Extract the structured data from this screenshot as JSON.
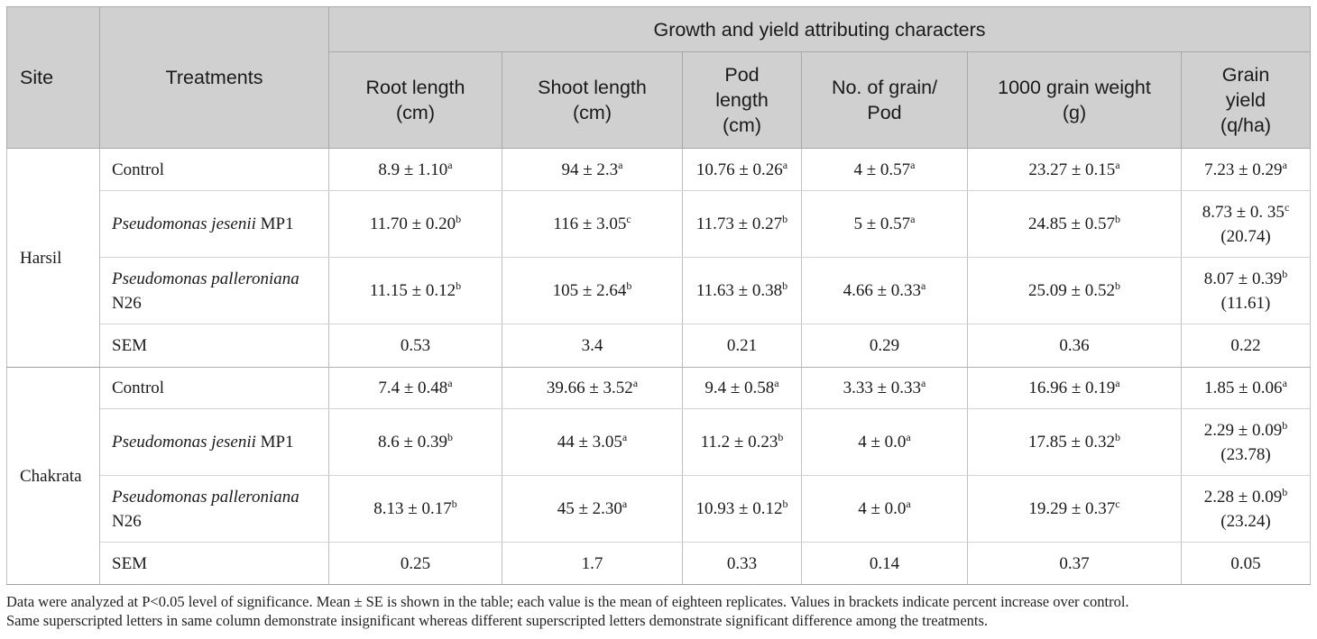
{
  "header": {
    "site": "Site",
    "treatments": "Treatments",
    "group": "Growth and yield attributing characters",
    "columns": [
      {
        "line1": "Root length",
        "line2": "(cm)",
        "line3": ""
      },
      {
        "line1": "Shoot length",
        "line2": "(cm)",
        "line3": ""
      },
      {
        "line1": "Pod",
        "line2": "length",
        "line3": "(cm)"
      },
      {
        "line1": "No. of grain/",
        "line2": "Pod",
        "line3": ""
      },
      {
        "line1": "1000 grain weight",
        "line2": "(g)",
        "line3": ""
      },
      {
        "line1": "Grain",
        "line2": "yield",
        "line3": "(q/ha)"
      }
    ]
  },
  "sites": [
    {
      "name": "Harsil",
      "rows": [
        {
          "treat_italic": "",
          "treat_plain": "Control",
          "treat_line2": "",
          "cells": [
            {
              "v": "8.9 ± 1.10",
              "s": "a",
              "extra": ""
            },
            {
              "v": "94 ± 2.3",
              "s": "a",
              "extra": ""
            },
            {
              "v": "10.76 ± 0.26",
              "s": "a",
              "extra": ""
            },
            {
              "v": "4 ± 0.57",
              "s": "a",
              "extra": ""
            },
            {
              "v": "23.27 ± 0.15",
              "s": "a",
              "extra": ""
            },
            {
              "v": "7.23 ± 0.29",
              "s": "a",
              "extra": ""
            }
          ]
        },
        {
          "treat_italic": "Pseudomonas jesenii",
          "treat_plain": " MP1",
          "treat_line2": "",
          "cells": [
            {
              "v": "11.70 ± 0.20",
              "s": "b",
              "extra": ""
            },
            {
              "v": "116 ± 3.05",
              "s": "c",
              "extra": ""
            },
            {
              "v": "11.73 ± 0.27",
              "s": "b",
              "extra": ""
            },
            {
              "v": "5 ± 0.57",
              "s": "a",
              "extra": ""
            },
            {
              "v": "24.85 ± 0.57",
              "s": "b",
              "extra": ""
            },
            {
              "v": "8.73 ± 0. 35",
              "s": "c",
              "extra": "(20.74)"
            }
          ]
        },
        {
          "treat_italic": "Pseudomonas palleroniana",
          "treat_plain": "",
          "treat_line2": "N26",
          "cells": [
            {
              "v": "11.15 ± 0.12",
              "s": "b",
              "extra": ""
            },
            {
              "v": "105 ± 2.64",
              "s": "b",
              "extra": ""
            },
            {
              "v": "11.63 ± 0.38",
              "s": "b",
              "extra": ""
            },
            {
              "v": "4.66 ± 0.33",
              "s": "a",
              "extra": ""
            },
            {
              "v": "25.09 ± 0.52",
              "s": "b",
              "extra": ""
            },
            {
              "v": "8.07 ± 0.39",
              "s": "b",
              "extra": "(11.61)"
            }
          ]
        }
      ],
      "sem": {
        "label": "SEM",
        "values": [
          "0.53",
          "3.4",
          "0.21",
          "0.29",
          "0.36",
          "0.22"
        ]
      }
    },
    {
      "name": "Chakrata",
      "rows": [
        {
          "treat_italic": "",
          "treat_plain": "Control",
          "treat_line2": "",
          "cells": [
            {
              "v": "7.4 ± 0.48",
              "s": "a",
              "extra": ""
            },
            {
              "v": "39.66 ± 3.52",
              "s": "a",
              "extra": ""
            },
            {
              "v": "9.4 ± 0.58",
              "s": "a",
              "extra": ""
            },
            {
              "v": "3.33 ± 0.33",
              "s": "a",
              "extra": ""
            },
            {
              "v": "16.96 ± 0.19",
              "s": "a",
              "extra": ""
            },
            {
              "v": "1.85 ± 0.06",
              "s": "a",
              "extra": ""
            }
          ]
        },
        {
          "treat_italic": "Pseudomonas jesenii",
          "treat_plain": " MP1",
          "treat_line2": "",
          "cells": [
            {
              "v": "8.6 ± 0.39",
              "s": "b",
              "extra": ""
            },
            {
              "v": "44 ± 3.05",
              "s": "a",
              "extra": ""
            },
            {
              "v": "11.2 ± 0.23",
              "s": "b",
              "extra": ""
            },
            {
              "v": "4 ± 0.0",
              "s": "a",
              "extra": ""
            },
            {
              "v": "17.85 ± 0.32",
              "s": "b",
              "extra": ""
            },
            {
              "v": "2.29 ± 0.09",
              "s": "b",
              "extra": "(23.78)"
            }
          ]
        },
        {
          "treat_italic": "Pseudomonas palleroniana",
          "treat_plain": "",
          "treat_line2": "N26",
          "cells": [
            {
              "v": "8.13 ± 0.17",
              "s": "b",
              "extra": ""
            },
            {
              "v": "45 ± 2.30",
              "s": "a",
              "extra": ""
            },
            {
              "v": "10.93 ± 0.12",
              "s": "b",
              "extra": ""
            },
            {
              "v": "4 ± 0.0",
              "s": "a",
              "extra": ""
            },
            {
              "v": "19.29 ± 0.37",
              "s": "c",
              "extra": ""
            },
            {
              "v": "2.28 ± 0.09",
              "s": "b",
              "extra": "(23.24)"
            }
          ]
        }
      ],
      "sem": {
        "label": "SEM",
        "values": [
          "0.25",
          "1.7",
          "0.33",
          "0.14",
          "0.37",
          "0.05"
        ]
      }
    }
  ],
  "footnote": {
    "line1": "Data were analyzed at P<0.05 level of significance. Mean ± SE is shown in the table; each value is the mean of eighteen replicates. Values in brackets indicate percent increase over control.",
    "line2": "Same superscripted letters in same column demonstrate insignificant whereas different superscripted letters demonstrate significant difference among the treatments."
  }
}
